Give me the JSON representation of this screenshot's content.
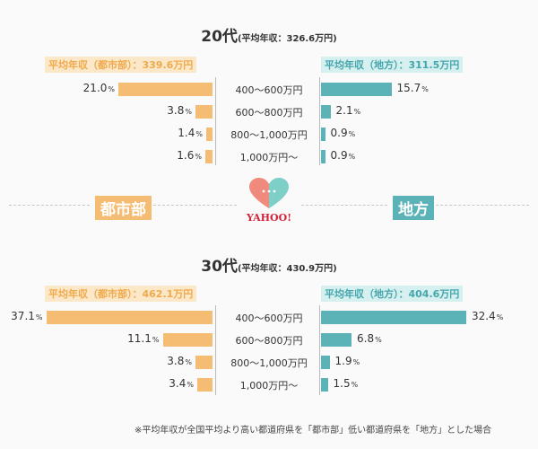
{
  "logo": {
    "text": "YAHOO!",
    "heart_colors": [
      "#f08a7c",
      "#7fcfc9"
    ]
  },
  "side_labels": {
    "urban": "都市部",
    "rural": "地方"
  },
  "footnote": "※平均年収が全国平均より高い都道府県を「都市部」低い都道府県を「地方」とした場合",
  "unit_suffix": "%",
  "colors": {
    "urban": "#f5bd74",
    "rural": "#5bb3b8",
    "urban_header_bg": "#fbe8c8",
    "rural_header_bg": "#d6efef"
  },
  "chart_data": [
    {
      "type": "bar",
      "title": "20代",
      "subtitle": "(平均年収：326.6万円)",
      "categories": [
        "400〜600万円",
        "600〜800万円",
        "800〜1,000万円",
        "1,000万円〜"
      ],
      "series": [
        {
          "name": "平均年収（都市部）：339.6万円",
          "values": [
            21.0,
            3.8,
            1.4,
            1.6
          ]
        },
        {
          "name": "平均年収（地方）：311.5万円",
          "values": [
            15.7,
            2.1,
            0.9,
            0.9
          ]
        }
      ]
    },
    {
      "type": "bar",
      "title": "30代",
      "subtitle": "(平均年収：430.9万円)",
      "categories": [
        "400〜600万円",
        "600〜800万円",
        "800〜1,000万円",
        "1,000万円〜"
      ],
      "series": [
        {
          "name": "平均年収（都市部）：462.1万円",
          "values": [
            37.1,
            11.1,
            3.8,
            3.4
          ]
        },
        {
          "name": "平均年収（地方）：404.6万円",
          "values": [
            32.4,
            6.8,
            1.9,
            1.5
          ]
        }
      ]
    }
  ]
}
